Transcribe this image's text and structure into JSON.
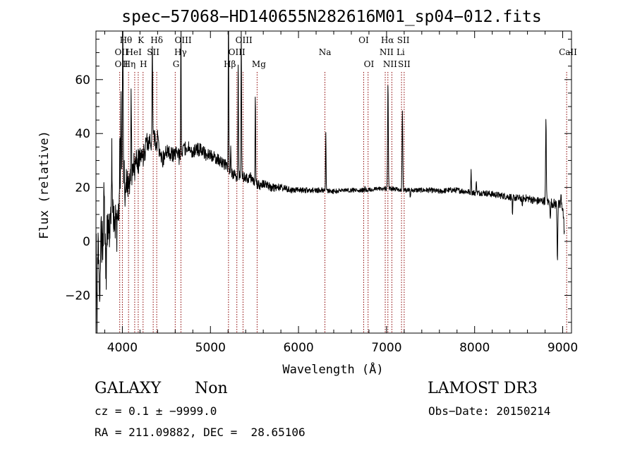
{
  "chart_data": {
    "type": "line",
    "title": "spec−57068−HD140655N282616M01_sp04−012.fits",
    "xlabel": "Wavelength (Å)",
    "ylabel": "Flux (relative)",
    "xlim": [
      3700,
      9100
    ],
    "ylim": [
      -34,
      78
    ],
    "x_ticks": [
      4000,
      5000,
      6000,
      7000,
      8000,
      9000
    ],
    "x_tick_labels": [
      "4000",
      "5000",
      "6000",
      "7000",
      "8000",
      "9000"
    ],
    "y_ticks": [
      -20,
      0,
      20,
      40,
      60
    ],
    "y_tick_labels": [
      "−20",
      "0",
      "20",
      "40",
      "60"
    ],
    "grid": false,
    "line_color": "#000000",
    "marker_color": "#8b0000",
    "anchors": [
      [
        3700,
        0
      ],
      [
        3730,
        -8
      ],
      [
        3760,
        3
      ],
      [
        3790,
        -3
      ],
      [
        3820,
        6
      ],
      [
        3850,
        2
      ],
      [
        3880,
        10
      ],
      [
        3910,
        5
      ],
      [
        3940,
        12
      ],
      [
        3970,
        12
      ],
      [
        3990,
        22
      ],
      [
        4000,
        30
      ],
      [
        4040,
        22
      ],
      [
        4080,
        20
      ],
      [
        4120,
        27
      ],
      [
        4160,
        30
      ],
      [
        4200,
        30
      ],
      [
        4240,
        32
      ],
      [
        4280,
        36
      ],
      [
        4320,
        37
      ],
      [
        4360,
        38
      ],
      [
        4400,
        36
      ],
      [
        4450,
        30
      ],
      [
        4500,
        33
      ],
      [
        4550,
        32
      ],
      [
        4600,
        33
      ],
      [
        4650,
        31
      ],
      [
        4700,
        34
      ],
      [
        4750,
        35
      ],
      [
        4800,
        33
      ],
      [
        4850,
        34
      ],
      [
        4900,
        34
      ],
      [
        4950,
        32
      ],
      [
        5000,
        32
      ],
      [
        5050,
        31
      ],
      [
        5100,
        30
      ],
      [
        5150,
        29
      ],
      [
        5200,
        27
      ],
      [
        5250,
        25
      ],
      [
        5300,
        24
      ],
      [
        5350,
        25
      ],
      [
        5400,
        23
      ],
      [
        5450,
        24
      ],
      [
        5500,
        22
      ],
      [
        5550,
        21
      ],
      [
        5600,
        21
      ],
      [
        5700,
        20
      ],
      [
        5800,
        20
      ],
      [
        5900,
        19
      ],
      [
        6000,
        19
      ],
      [
        6100,
        19
      ],
      [
        6200,
        19
      ],
      [
        6300,
        19
      ],
      [
        6400,
        18.5
      ],
      [
        6500,
        19
      ],
      [
        6600,
        19
      ],
      [
        6700,
        19
      ],
      [
        6800,
        19
      ],
      [
        6900,
        19.5
      ],
      [
        7000,
        19.5
      ],
      [
        7100,
        19.5
      ],
      [
        7200,
        19
      ],
      [
        7300,
        19
      ],
      [
        7400,
        19
      ],
      [
        7500,
        19
      ],
      [
        7600,
        18.5
      ],
      [
        7700,
        19
      ],
      [
        7800,
        19
      ],
      [
        7900,
        18.5
      ],
      [
        8000,
        18
      ],
      [
        8100,
        18
      ],
      [
        8200,
        17.5
      ],
      [
        8300,
        17
      ],
      [
        8400,
        16.5
      ],
      [
        8500,
        16
      ],
      [
        8600,
        16
      ],
      [
        8700,
        15
      ],
      [
        8800,
        15
      ],
      [
        8900,
        14
      ],
      [
        9000,
        13
      ],
      [
        9020,
        3
      ]
    ],
    "noise": [
      [
        3700,
        11
      ],
      [
        3900,
        8
      ],
      [
        4000,
        6
      ],
      [
        4400,
        3.5
      ],
      [
        5000,
        2.2
      ],
      [
        5600,
        1.8
      ],
      [
        6000,
        1.0
      ],
      [
        7000,
        0.8
      ],
      [
        8000,
        1.1
      ],
      [
        8800,
        1.5
      ],
      [
        9000,
        2.2
      ],
      [
        9020,
        2.5
      ]
    ],
    "features": [
      [
        3712,
        -26,
        4
      ],
      [
        3745,
        -20,
        4
      ],
      [
        3790,
        18,
        5
      ],
      [
        3815,
        -15,
        5
      ],
      [
        3880,
        24,
        4
      ],
      [
        3935,
        -10,
        4
      ],
      [
        3972,
        25,
        3
      ],
      [
        3985,
        35,
        3
      ],
      [
        4005,
        60,
        3
      ],
      [
        4030,
        -8,
        3
      ],
      [
        4100,
        32,
        3
      ],
      [
        4140,
        -3,
        3
      ],
      [
        4340,
        40,
        3
      ],
      [
        4400,
        2,
        3
      ],
      [
        4665,
        48,
        3
      ],
      [
        5205,
        64,
        3
      ],
      [
        5230,
        8,
        3
      ],
      [
        5315,
        42,
        3
      ],
      [
        5350,
        60,
        3
      ],
      [
        5510,
        32,
        3
      ],
      [
        6310,
        22,
        3
      ],
      [
        6755,
        2,
        3
      ],
      [
        6990,
        0.5,
        3
      ],
      [
        7016,
        40,
        4
      ],
      [
        7180,
        30,
        4
      ],
      [
        7270,
        -3,
        3
      ],
      [
        7960,
        9,
        3
      ],
      [
        8020,
        5,
        3
      ],
      [
        8430,
        -8,
        3
      ],
      [
        8540,
        -4,
        3
      ],
      [
        8810,
        30,
        4
      ],
      [
        8860,
        -7,
        3
      ],
      [
        8940,
        -20,
        4
      ],
      [
        8980,
        4,
        3
      ]
    ],
    "lines": [
      {
        "x": 3970,
        "labels": [
          "OII",
          "OII"
        ]
      },
      {
        "x": 4000,
        "labels": [
          "Hθ",
          "Hη"
        ]
      },
      {
        "x": 4070,
        "labels": [
          "HeI"
        ]
      },
      {
        "x": 4140,
        "labels": [
          "K"
        ]
      },
      {
        "x": 4180,
        "labels": [
          "HeI"
        ]
      },
      {
        "x": 4235,
        "labels": [
          "H"
        ]
      },
      {
        "x": 4350,
        "labels": [
          "Hδ",
          "SII"
        ]
      },
      {
        "x": 4390,
        "labels": []
      },
      {
        "x": 4600,
        "labels": [
          "G"
        ]
      },
      {
        "x": 4665,
        "labels": [
          "OIII",
          "Hγ"
        ]
      },
      {
        "x": 5205,
        "labels": [
          "Hβ"
        ]
      },
      {
        "x": 5300,
        "labels": [
          "OIII"
        ]
      },
      {
        "x": 5370,
        "labels": [
          "OIII"
        ]
      },
      {
        "x": 5530,
        "labels": [
          "Mg"
        ]
      },
      {
        "x": 6300,
        "labels": [
          "Na"
        ]
      },
      {
        "x": 6740,
        "labels": [
          "OI"
        ]
      },
      {
        "x": 6790,
        "labels": [
          "OI"
        ]
      },
      {
        "x": 6985,
        "labels": [
          "NII"
        ]
      },
      {
        "x": 7015,
        "labels": [
          "Hα",
          "NII"
        ]
      },
      {
        "x": 7060,
        "labels": []
      },
      {
        "x": 7170,
        "labels": [
          "SII",
          "Li",
          "SII"
        ]
      },
      {
        "x": 7200,
        "labels": []
      },
      {
        "x": 9045,
        "labels": [
          "CaII"
        ]
      }
    ],
    "line_label_rows": [
      {
        "text": "Hθ",
        "x": 4040,
        "row": 0
      },
      {
        "text": "K",
        "x": 4210,
        "row": 0
      },
      {
        "text": "Hδ",
        "x": 4390,
        "row": 0
      },
      {
        "text": "OIII",
        "x": 4690,
        "row": 0
      },
      {
        "text": "OIII",
        "x": 5380,
        "row": 0
      },
      {
        "text": "OI",
        "x": 6740,
        "row": 0
      },
      {
        "text": "Hα",
        "x": 7010,
        "row": 0
      },
      {
        "text": "SII",
        "x": 7190,
        "row": 0
      },
      {
        "text": "OII",
        "x": 3990,
        "row": 1
      },
      {
        "text": "HeI",
        "x": 4130,
        "row": 1
      },
      {
        "text": "SII",
        "x": 4350,
        "row": 1
      },
      {
        "text": "Hγ",
        "x": 4660,
        "row": 1
      },
      {
        "text": "OIII",
        "x": 5300,
        "row": 1
      },
      {
        "text": "Na",
        "x": 6300,
        "row": 1
      },
      {
        "text": "NII",
        "x": 7000,
        "row": 1
      },
      {
        "text": "Li",
        "x": 7160,
        "row": 1
      },
      {
        "text": "CaII",
        "x": 9060,
        "row": 1
      },
      {
        "text": "OII",
        "x": 3990,
        "row": 2
      },
      {
        "text": "Hη",
        "x": 4080,
        "row": 2
      },
      {
        "text": "H",
        "x": 4240,
        "row": 2
      },
      {
        "text": "G",
        "x": 4610,
        "row": 2
      },
      {
        "text": "Hβ",
        "x": 5220,
        "row": 2
      },
      {
        "text": "Mg",
        "x": 5550,
        "row": 2
      },
      {
        "text": "OI",
        "x": 6800,
        "row": 2
      },
      {
        "text": "NII",
        "x": 7040,
        "row": 2
      },
      {
        "text": "SII",
        "x": 7200,
        "row": 2
      }
    ]
  },
  "info": {
    "class_label": "GALAXY",
    "subclass_label": "Non",
    "survey_label": "LAMOST DR3",
    "cz_line": "cz = 0.1 ± −9999.0",
    "obs_date_line": "Obs−Date: 20150214",
    "radec_line": "RA = 211.09882, DEC =  28.65106"
  }
}
